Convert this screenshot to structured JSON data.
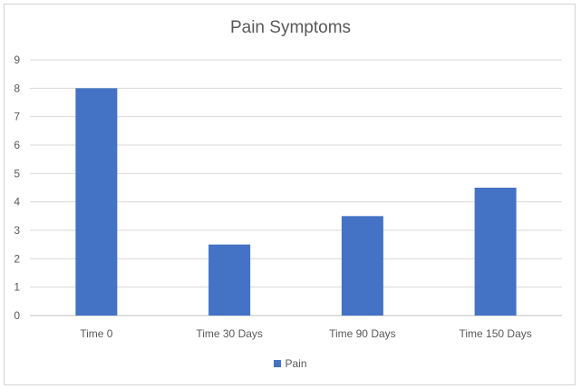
{
  "chart_data": {
    "type": "bar",
    "title": "Pain Symptoms",
    "categories": [
      "Time 0",
      "Time 30 Days",
      "Time 90 Days",
      "Time 150 Days"
    ],
    "series": [
      {
        "name": "Pain",
        "values": [
          8,
          2.5,
          3.5,
          4.5
        ],
        "color": "#4472c4"
      }
    ],
    "ylim": [
      0,
      9
    ],
    "yticks": [
      0,
      1,
      2,
      3,
      4,
      5,
      6,
      7,
      8,
      9
    ],
    "grid": true,
    "legend": "bottom",
    "xlabel": "",
    "ylabel": ""
  }
}
